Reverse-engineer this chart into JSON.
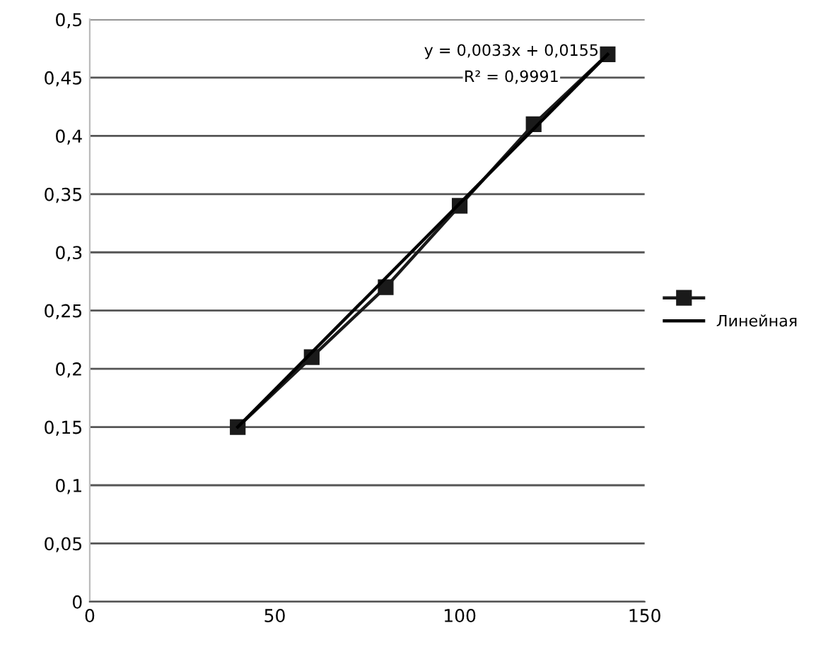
{
  "chart_data": {
    "type": "line",
    "x": [
      40,
      60,
      80,
      100,
      120,
      140
    ],
    "series": [
      {
        "color": "#1a1a1a",
        "values": [
          0.15,
          0.21,
          0.27,
          0.34,
          0.41,
          0.47
        ],
        "marker": "square"
      },
      {
        "name": "Линейная",
        "color": "#000000",
        "x": [
          40,
          140
        ],
        "values": [
          0.15,
          0.47
        ],
        "marker": "none"
      }
    ],
    "xlim": [
      0,
      150
    ],
    "xticks": [
      0,
      50,
      100,
      150
    ],
    "ylim": [
      0,
      0.5
    ],
    "yticks": [
      0,
      {
        "value": 0.05,
        "label": "0,05"
      },
      {
        "value": 0.1,
        "label": "0,1"
      },
      {
        "value": 0.15,
        "label": "0,15"
      },
      {
        "value": 0.2,
        "label": "0,2"
      },
      {
        "value": 0.25,
        "label": "0,25"
      },
      {
        "value": 0.3,
        "label": "0,3"
      },
      {
        "value": 0.35,
        "label": "0,35"
      },
      {
        "value": 0.4,
        "label": "0,4"
      },
      {
        "value": 0.45,
        "label": "0,45"
      },
      {
        "value": 0.5,
        "label": "0,5"
      }
    ],
    "grid": "y",
    "legend": "right",
    "annotations": [
      "y = 0,0033x + 0,0155",
      "R² = 0,9991"
    ]
  }
}
